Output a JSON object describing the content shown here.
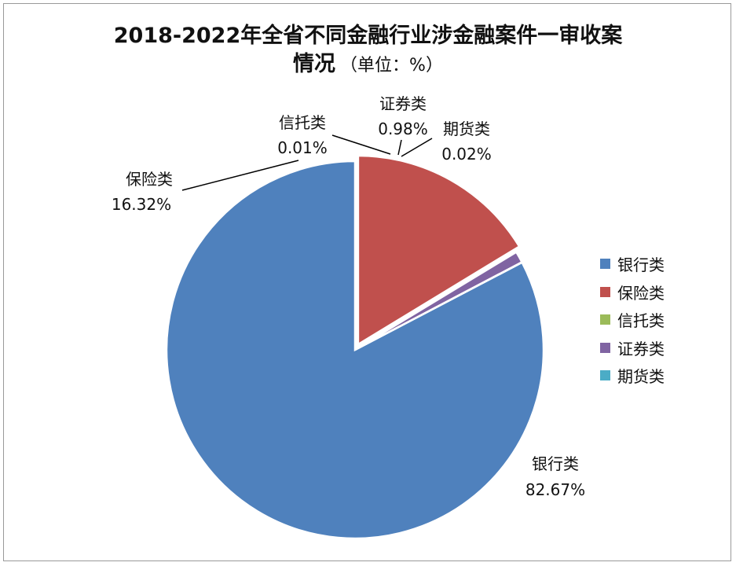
{
  "chart_data": {
    "type": "pie",
    "title": "2018-2022年全省不同金融行业涉金融案件一审收案",
    "title_line2": "情况",
    "unit_note": "（单位：%）",
    "slices": [
      {
        "name": "银行类",
        "value": 82.67,
        "label": "82.67%",
        "color": "#4F81BD"
      },
      {
        "name": "保险类",
        "value": 16.32,
        "label": "16.32%",
        "color": "#C0504D"
      },
      {
        "name": "信托类",
        "value": 0.01,
        "label": "0.01%",
        "color": "#9BBB59"
      },
      {
        "name": "证券类",
        "value": 0.98,
        "label": "0.98%",
        "color": "#8064A2"
      },
      {
        "name": "期货类",
        "value": 0.02,
        "label": "0.02%",
        "color": "#4BACC6"
      }
    ],
    "legend_position": "right"
  }
}
